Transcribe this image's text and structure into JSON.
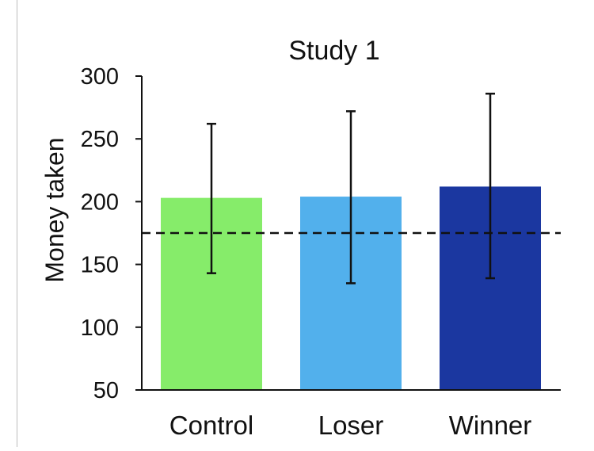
{
  "chart_data": {
    "type": "bar",
    "title": "Study 1",
    "xlabel": "",
    "ylabel": "Money taken",
    "ylim": [
      50,
      300
    ],
    "yticks": [
      50,
      100,
      150,
      200,
      250,
      300
    ],
    "categories": [
      "Control",
      "Loser",
      "Winner"
    ],
    "values": [
      203,
      204,
      212
    ],
    "error_bars": [
      {
        "low": 143,
        "high": 262
      },
      {
        "low": 135,
        "high": 272
      },
      {
        "low": 139,
        "high": 286
      }
    ],
    "reference_line": {
      "value": 175,
      "style": "dashed"
    },
    "colors": [
      "#86ec6a",
      "#52b0ec",
      "#1b37a0"
    ],
    "grid": false,
    "legend": "none"
  }
}
